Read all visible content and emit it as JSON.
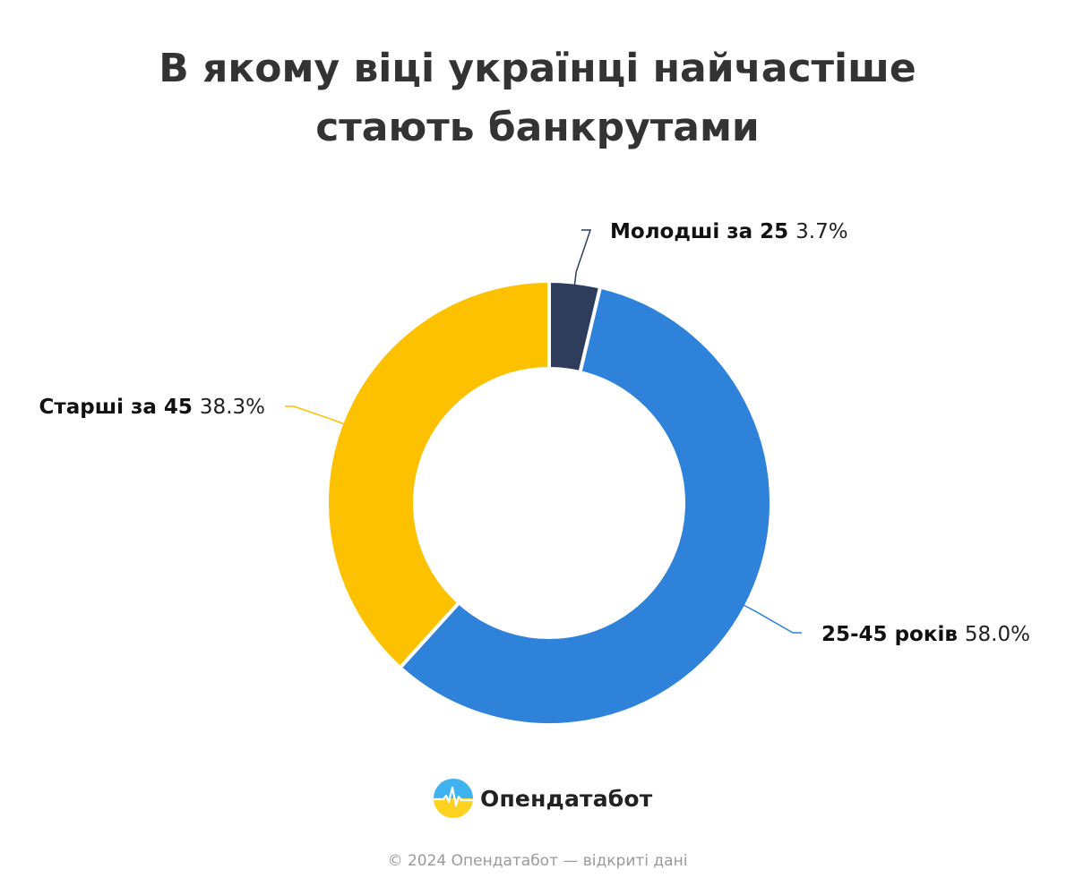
{
  "title": {
    "line1": "В якому віці українці найчастіше",
    "line2": "стають банкрутами"
  },
  "chart_data": {
    "type": "pie",
    "donut": true,
    "title": "В якому віці українці найчастіше стають банкрутами",
    "slices": [
      {
        "label": "Молодші за 25",
        "value": 3.7,
        "value_label": "3.7%",
        "color": "#2e3d5c"
      },
      {
        "label": "25-45 років",
        "value": 58.0,
        "value_label": "58.0%",
        "color": "#2e82d9"
      },
      {
        "label": "Старші за 45",
        "value": 38.3,
        "value_label": "38.3%",
        "color": "#fdc100"
      }
    ]
  },
  "brand": {
    "name": "Опендатабот",
    "logo_icon": "opendatabot-logo-icon"
  },
  "footer": {
    "text": "© 2024 Опендатабот — відкриті дані"
  }
}
